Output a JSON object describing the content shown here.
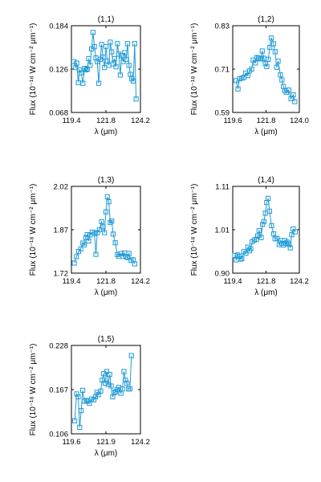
{
  "chart_data": [
    {
      "type": "scatter",
      "title": "(1,1)",
      "xlabel": "λ (μm)",
      "ylabel": "Flux (10⁻¹⁸ W cm⁻² μm⁻¹)",
      "xlim": [
        119.4,
        124.2
      ],
      "ylim": [
        0.068,
        0.184
      ],
      "xticks": [
        "119.4",
        "121.8",
        "124.2"
      ],
      "yticks": [
        "0.068",
        "0.126",
        "0.184"
      ],
      "series": [
        {
          "x": [
            119.57,
            119.7,
            119.77,
            119.88,
            119.97,
            120.07,
            120.2,
            120.32,
            120.42,
            120.5,
            120.6,
            120.7,
            120.8,
            120.9,
            121.0,
            121.1,
            121.2,
            121.3,
            121.4,
            121.5,
            121.6,
            121.7,
            121.8,
            121.9,
            122.0,
            122.1,
            122.2,
            122.3,
            122.4,
            122.5,
            122.6,
            122.7,
            122.8,
            122.9,
            123.0,
            123.1,
            123.2,
            123.3,
            123.4,
            123.5,
            123.6,
            123.7,
            123.8,
            123.9
          ],
          "y": [
            0.136,
            0.128,
            0.134,
            0.108,
            0.125,
            0.121,
            0.107,
            0.127,
            0.125,
            0.126,
            0.14,
            0.131,
            0.153,
            0.175,
            0.156,
            0.141,
            0.136,
            0.107,
            0.139,
            0.159,
            0.142,
            0.128,
            0.156,
            0.137,
            0.131,
            0.162,
            0.149,
            0.133,
            0.14,
            0.129,
            0.16,
            0.146,
            0.118,
            0.144,
            0.136,
            0.148,
            0.139,
            0.16,
            0.131,
            0.119,
            0.113,
            0.11,
            0.16,
            0.086
          ]
        }
      ]
    },
    {
      "type": "scatter",
      "title": "(1,2)",
      "xlabel": "λ (μm)",
      "ylabel": "Flux (10⁻¹⁸ W cm⁻² μm⁻¹)",
      "xlim": [
        119.6,
        124.0
      ],
      "ylim": [
        0.59,
        0.83
      ],
      "xticks": [
        "119.6",
        "121.8",
        "124.0"
      ],
      "yticks": [
        "0.59",
        "0.71",
        "0.83"
      ],
      "series": [
        {
          "x": [
            119.82,
            119.95,
            120.05,
            120.2,
            120.35,
            120.45,
            120.6,
            120.7,
            120.85,
            120.95,
            121.1,
            121.2,
            121.3,
            121.45,
            121.55,
            121.65,
            121.75,
            121.85,
            121.95,
            122.05,
            122.15,
            122.3,
            122.4,
            122.5,
            122.6,
            122.75,
            122.85,
            122.95,
            123.05,
            123.15,
            123.3,
            123.45,
            123.6,
            123.7
          ],
          "y": [
            0.678,
            0.655,
            0.683,
            0.685,
            0.687,
            0.699,
            0.692,
            0.705,
            0.71,
            0.735,
            0.727,
            0.742,
            0.74,
            0.738,
            0.76,
            0.74,
            0.725,
            0.717,
            0.737,
            0.77,
            0.796,
            0.78,
            0.758,
            0.715,
            0.732,
            0.694,
            0.68,
            0.662,
            0.65,
            0.646,
            0.652,
            0.628,
            0.639,
            0.62
          ]
        }
      ]
    },
    {
      "type": "scatter",
      "title": "(1,3)",
      "xlabel": "λ (μm)",
      "ylabel": "Flux (10⁻¹⁸ W cm⁻² μm⁻¹)",
      "xlim": [
        119.4,
        124.2
      ],
      "ylim": [
        1.72,
        2.02
      ],
      "xticks": [
        "119.4",
        "121.8",
        "124.2"
      ],
      "yticks": [
        "1.72",
        "1.87",
        "2.02"
      ],
      "series": [
        {
          "x": [
            119.6,
            119.75,
            119.9,
            120.05,
            120.2,
            120.3,
            120.4,
            120.5,
            120.6,
            120.7,
            120.85,
            121.0,
            121.1,
            121.2,
            121.35,
            121.5,
            121.6,
            121.7,
            121.8,
            121.9,
            122.0,
            122.1,
            122.2,
            122.3,
            122.45,
            122.6,
            122.7,
            122.85,
            123.0,
            123.1,
            123.2,
            123.3,
            123.4,
            123.55,
            123.7,
            123.8
          ],
          "y": [
            1.755,
            1.777,
            1.795,
            1.804,
            1.824,
            1.818,
            1.843,
            1.853,
            1.831,
            1.852,
            1.862,
            1.857,
            1.785,
            1.86,
            1.87,
            1.898,
            1.88,
            1.86,
            1.932,
            1.984,
            1.967,
            1.895,
            1.9,
            1.855,
            1.825,
            1.784,
            1.778,
            1.788,
            1.778,
            1.79,
            1.777,
            1.774,
            1.788,
            1.764,
            1.766,
            1.752
          ]
        }
      ]
    },
    {
      "type": "scatter",
      "title": "(1,4)",
      "xlabel": "λ (μm)",
      "ylabel": "Flux (10⁻¹⁸ W cm⁻² μm⁻¹)",
      "xlim": [
        119.4,
        124.2
      ],
      "ylim": [
        0.9,
        1.11
      ],
      "xticks": [
        "119.4",
        "121.8",
        "124.2"
      ],
      "yticks": [
        "0.90",
        "1.01",
        "1.11"
      ],
      "series": [
        {
          "x": [
            119.55,
            119.65,
            119.75,
            119.85,
            119.95,
            120.05,
            120.2,
            120.35,
            120.5,
            120.6,
            120.7,
            120.8,
            120.95,
            121.1,
            121.2,
            121.3,
            121.45,
            121.55,
            121.65,
            121.75,
            121.85,
            121.95,
            122.05,
            122.2,
            122.35,
            122.45,
            122.6,
            122.75,
            122.85,
            122.95,
            123.05,
            123.15,
            123.25,
            123.35,
            123.45,
            123.55,
            123.65,
            123.75,
            123.9
          ],
          "y": [
            0.943,
            0.932,
            0.944,
            0.941,
            0.934,
            0.935,
            0.952,
            0.948,
            0.963,
            0.954,
            0.959,
            0.976,
            0.98,
            0.982,
            0.99,
            1.003,
            0.986,
            1.018,
            1.025,
            1.045,
            1.071,
            1.081,
            1.05,
            1.015,
            0.995,
            0.983,
            0.984,
            0.969,
            0.979,
            0.972,
            0.968,
            0.979,
            0.972,
            0.975,
            0.97,
            0.961,
            0.993,
            1.007,
            1.0
          ]
        }
      ]
    },
    {
      "type": "scatter",
      "title": "(1,5)",
      "xlabel": "λ (μm)",
      "ylabel": "Flux (10⁻¹⁸ W cm⁻² μm⁻¹)",
      "xlim": [
        119.6,
        124.2
      ],
      "ylim": [
        0.106,
        0.228
      ],
      "xticks": [
        "119.6",
        "121.9",
        "124.2"
      ],
      "yticks": [
        "0.106",
        "0.167",
        "0.228"
      ],
      "series": [
        {
          "x": [
            119.82,
            119.95,
            120.05,
            120.15,
            120.25,
            120.35,
            120.45,
            120.6,
            120.7,
            120.8,
            120.95,
            121.1,
            121.2,
            121.3,
            121.4,
            121.55,
            121.65,
            121.75,
            121.85,
            121.95,
            122.05,
            122.15,
            122.25,
            122.35,
            122.45,
            122.55,
            122.65,
            122.75,
            122.9,
            123.0,
            123.1,
            123.2,
            123.3,
            123.4,
            123.5,
            123.6
          ],
          "y": [
            0.124,
            0.161,
            0.157,
            0.115,
            0.138,
            0.166,
            0.151,
            0.152,
            0.151,
            0.148,
            0.154,
            0.153,
            0.157,
            0.163,
            0.16,
            0.165,
            0.18,
            0.189,
            0.176,
            0.192,
            0.174,
            0.188,
            0.172,
            0.157,
            0.163,
            0.164,
            0.167,
            0.17,
            0.162,
            0.168,
            0.192,
            0.18,
            0.176,
            0.168,
            0.168,
            0.214
          ]
        }
      ]
    }
  ]
}
